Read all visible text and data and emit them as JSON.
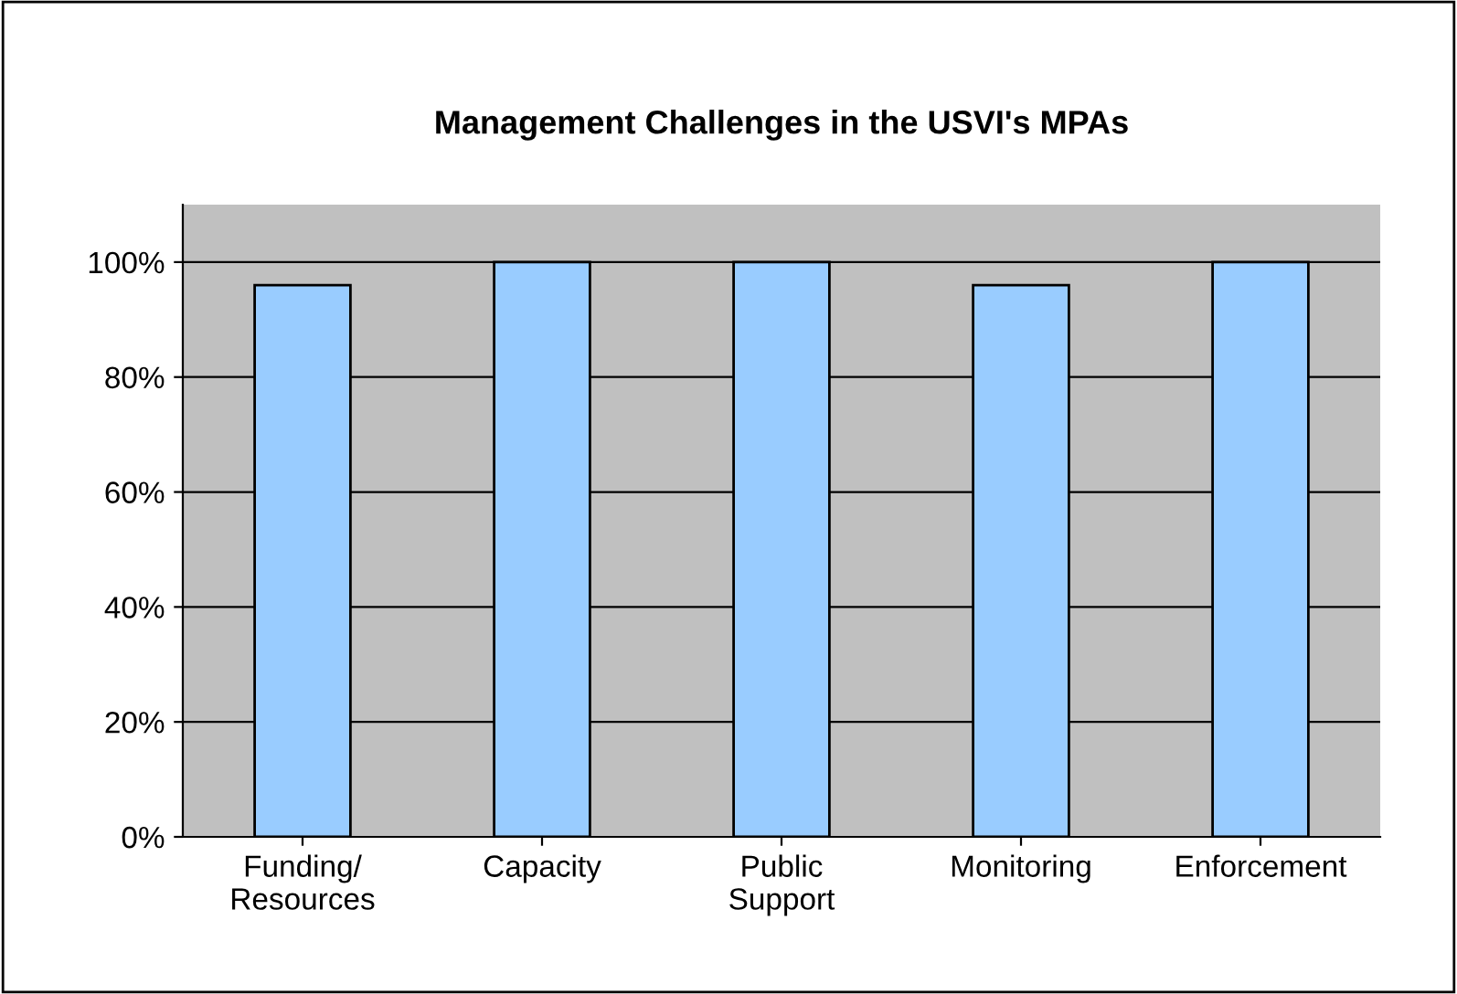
{
  "chart_data": {
    "type": "bar",
    "title": "Management Challenges in the USVI's MPAs",
    "categories": [
      "Funding/\nResources",
      "Capacity",
      "Public\nSupport",
      "Monitoring",
      "Enforcement"
    ],
    "values": [
      96,
      100,
      100,
      96,
      100
    ],
    "color": "#99ccff",
    "ylim": [
      0,
      110
    ],
    "yticks": [
      {
        "value": 0,
        "label": "0%"
      },
      {
        "value": 20,
        "label": "20%"
      },
      {
        "value": 40,
        "label": "40%"
      },
      {
        "value": 60,
        "label": "60%"
      },
      {
        "value": 80,
        "label": "80%"
      },
      {
        "value": 100,
        "label": "100%"
      }
    ],
    "grid": "y",
    "legend": false
  }
}
